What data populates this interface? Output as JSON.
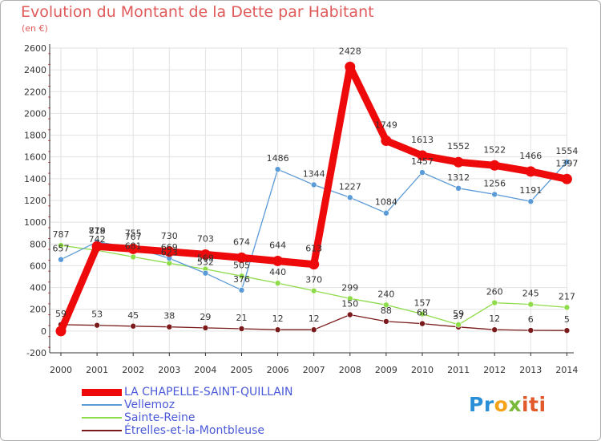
{
  "title": "Evolution du Montant de la Dette par Habitant",
  "unit": "(en €)",
  "colors": {
    "title": "#e05a5a",
    "legend_text": "#4a5ad8",
    "axis": "#333333",
    "grid": "#e2e2e2",
    "background": "#ffffff"
  },
  "logo": {
    "brand": "Proxiti",
    "parts": [
      "Pr",
      "o",
      "x",
      "iti"
    ],
    "colors": [
      "#2a8fd6",
      "#f4a31a",
      "#7ab93a",
      "#e25a2a"
    ]
  },
  "chart_data": {
    "type": "line",
    "title": "Evolution du Montant de la Dette par Habitant",
    "ylabel": "(en €)",
    "xlabel": "",
    "x": [
      2000,
      2001,
      2002,
      2003,
      2004,
      2005,
      2006,
      2007,
      2008,
      2009,
      2010,
      2011,
      2012,
      2013,
      2014
    ],
    "ylim": [
      -200,
      2600
    ],
    "yticks": [
      -200,
      0,
      200,
      400,
      600,
      800,
      1000,
      1200,
      1400,
      1600,
      1800,
      2000,
      2200,
      2400,
      2600
    ],
    "grid": true,
    "legend_position": "bottom-left",
    "series": [
      {
        "name": "LA CHAPELLE-SAINT-QUILLAIN",
        "color": "#ee0a0a",
        "line_width": 9,
        "marker_radius": 6.5,
        "label_offset": -16,
        "values": [
          0,
          778,
          755,
          730,
          703,
          674,
          644,
          613,
          2428,
          1749,
          1613,
          1552,
          1522,
          1466,
          1397
        ],
        "labels": [
          "",
          "778",
          "755",
          "730",
          "703",
          "674",
          "644",
          "613",
          "2428",
          "1749",
          "1613",
          "1552",
          "1522",
          "1466",
          "1397"
        ]
      },
      {
        "name": "Vellemoz",
        "color": "#5a9ad6",
        "line_width": 1.3,
        "marker_radius": 3.5,
        "label_offset": -10,
        "values": [
          657,
          819,
          767,
          669,
          532,
          376,
          1486,
          1344,
          1227,
          1084,
          1457,
          1312,
          1256,
          1191,
          1554
        ],
        "labels": [
          "657",
          "819",
          "767",
          "669",
          "532",
          "376",
          "1486",
          "1344",
          "1227",
          "1084",
          "1457",
          "1312",
          "1256",
          "1191",
          "1554"
        ]
      },
      {
        "name": "Sainte-Reine",
        "color": "#8fdc4a",
        "line_width": 1.3,
        "marker_radius": 3.5,
        "label_offset": -10,
        "values": [
          787,
          742,
          681,
          623,
          569,
          505,
          440,
          370,
          299,
          240,
          157,
          59,
          260,
          245,
          217
        ],
        "labels": [
          "787",
          "742",
          "681",
          "623",
          "569",
          "505",
          "440",
          "370",
          "299",
          "240",
          "157",
          "59",
          "260",
          "245",
          "217"
        ]
      },
      {
        "name": "Étrelles-et-la-Montbleuse",
        "color": "#7a1a1a",
        "line_width": 1.3,
        "marker_radius": 3.5,
        "label_offset": -10,
        "values": [
          59,
          53,
          45,
          38,
          29,
          21,
          12,
          12,
          150,
          88,
          68,
          37,
          12,
          6,
          5
        ],
        "labels": [
          "59",
          "53",
          "45",
          "38",
          "29",
          "21",
          "12",
          "12",
          "150",
          "88",
          "68",
          "37",
          "12",
          "6",
          "5"
        ]
      }
    ]
  }
}
